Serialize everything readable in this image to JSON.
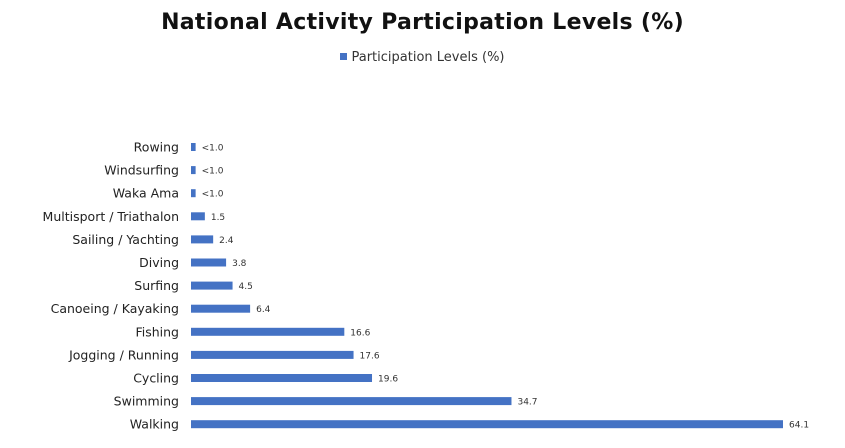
{
  "chart_data": {
    "type": "bar",
    "orientation": "horizontal",
    "title": "National Activity Participation Levels (%)",
    "legend": {
      "position": "top",
      "entries": [
        "Participation Levels (%)"
      ]
    },
    "series": [
      {
        "name": "Participation Levels (%)",
        "color": "#4472C4"
      }
    ],
    "categories": [
      "Rowing",
      "Windsurfing",
      "Waka Ama",
      "Multisport / Triathalon",
      "Sailing / Yachting",
      "Diving",
      "Surfing",
      "Canoeing / Kayaking",
      "Fishing",
      "Jogging / Running",
      "Cycling",
      "Swimming",
      "Walking"
    ],
    "values": [
      0.5,
      0.5,
      0.5,
      1.5,
      2.4,
      3.8,
      4.5,
      6.4,
      16.6,
      17.6,
      19.6,
      34.7,
      64.1
    ],
    "data_labels": [
      "<1.0",
      "<1.0",
      "<1.0",
      "1.5",
      "2.4",
      "3.8",
      "4.5",
      "6.4",
      "16.6",
      "17.6",
      "19.6",
      "34.7",
      "64.1"
    ],
    "xlim": [
      0,
      64.1
    ],
    "grid": false,
    "axis_visible": false
  }
}
